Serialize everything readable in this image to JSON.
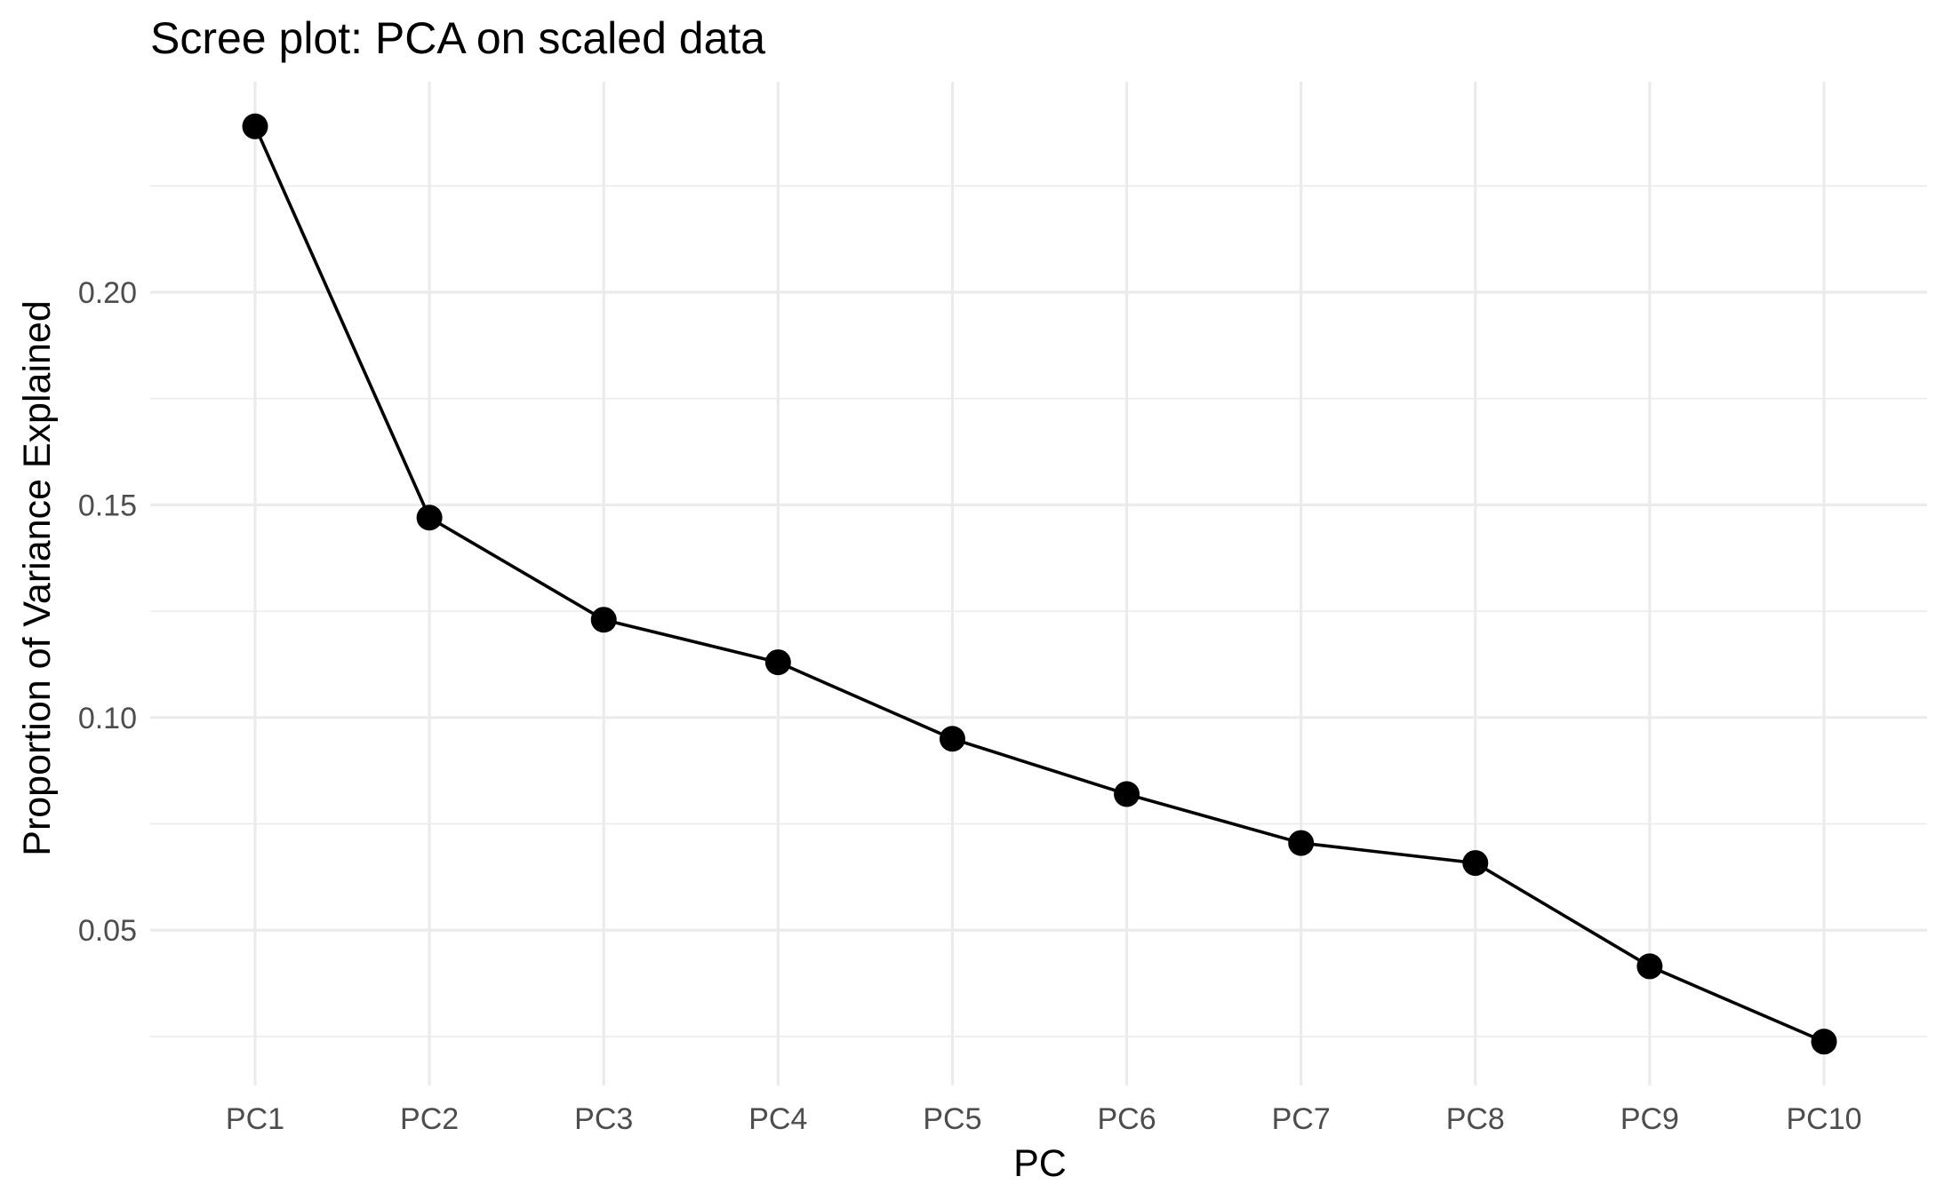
{
  "chart_data": {
    "type": "line",
    "title": "Scree plot: PCA on scaled data",
    "xlabel": "PC",
    "ylabel": "Proportion of Variance Explained",
    "categories": [
      "PC1",
      "PC2",
      "PC3",
      "PC4",
      "PC5",
      "PC6",
      "PC7",
      "PC8",
      "PC9",
      "PC10"
    ],
    "series": [
      {
        "values": [
          0.239,
          0.147,
          0.123,
          0.113,
          0.095,
          0.082,
          0.0705,
          0.0658,
          0.0415,
          0.0238
        ]
      }
    ],
    "points_shown": true,
    "yticks": [
      0.05,
      0.1,
      0.15,
      0.2
    ],
    "ytick_labels": [
      "0.05",
      "0.10",
      "0.15",
      "0.20"
    ],
    "ylim": [
      0.0135,
      0.2495
    ],
    "grid": true,
    "series_color": "#000000",
    "grid_color": "#ebebeb"
  }
}
